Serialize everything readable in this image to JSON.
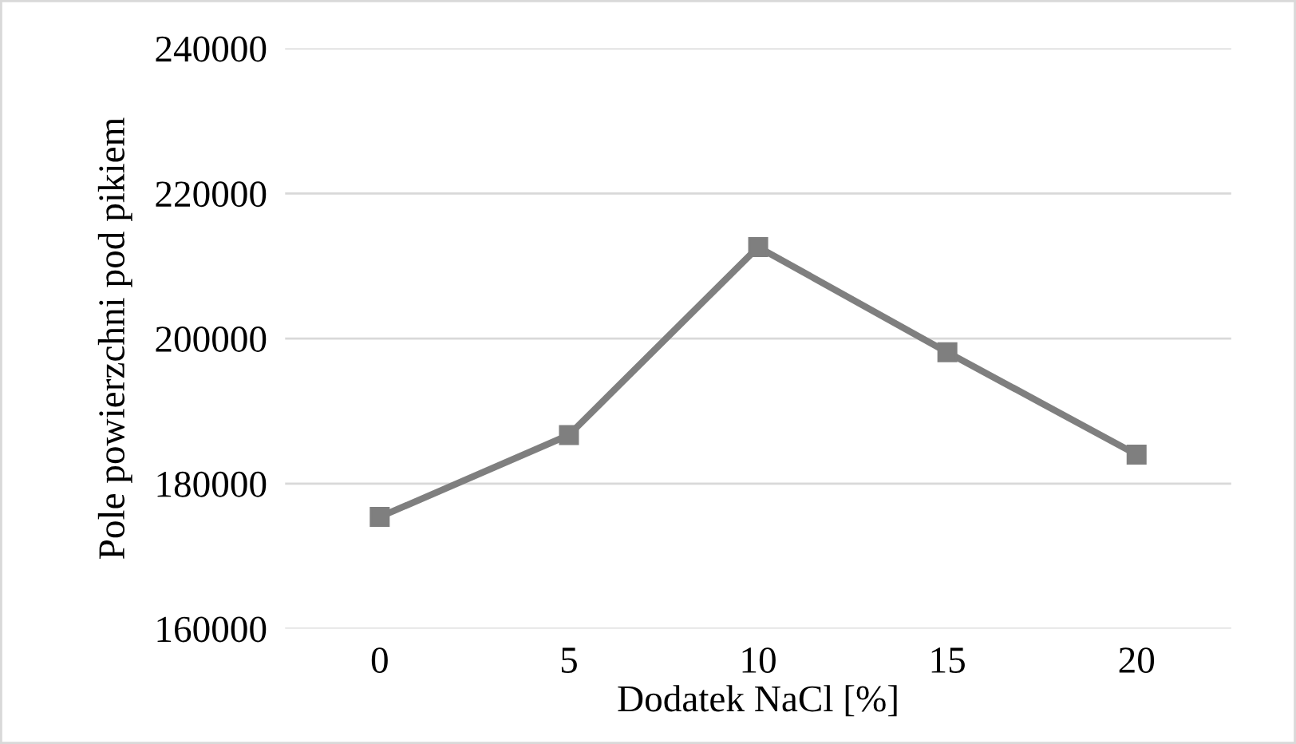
{
  "chart_data": {
    "type": "line",
    "xlabel": "Dodatek NaCl [%]",
    "ylabel": "Pole powierzchni pod pikiem",
    "categories": [
      "0",
      "5",
      "10",
      "15",
      "20"
    ],
    "series": [
      {
        "color": "#7f7f7f",
        "values": [
          175400,
          186700,
          212600,
          198100,
          184000
        ]
      }
    ],
    "ylim": [
      160000,
      240000
    ],
    "yticks": [
      160000,
      180000,
      200000,
      220000,
      240000
    ],
    "grid": "y",
    "marker": "square",
    "line_style": "solid"
  }
}
